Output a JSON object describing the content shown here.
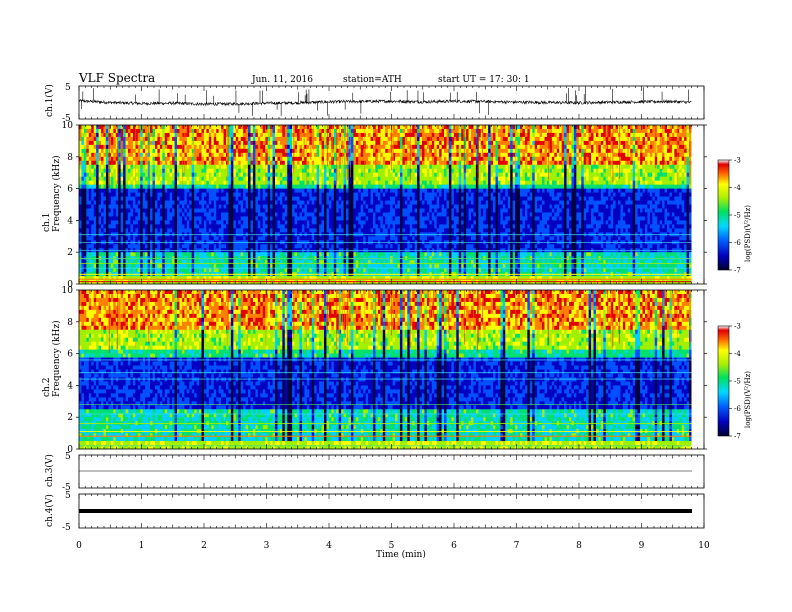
{
  "header": {
    "title": "VLF  Spectra",
    "date": "Jun. 11, 2016",
    "station": "station=ATH",
    "start": "start  UT  =    17: 30: 1"
  },
  "chart_data": [
    {
      "type": "line",
      "panel": "ch1-waveform",
      "ylabel": "ch.1(V)",
      "ylim": [
        -5,
        5
      ],
      "yticks": [
        "5",
        "-5"
      ],
      "xlim": [
        0,
        10
      ],
      "x": [
        0,
        0.5,
        1,
        1.5,
        2,
        2.5,
        3,
        3.5,
        4,
        4.5,
        5,
        5.5,
        6,
        6.5,
        7,
        7.5,
        8,
        8.5,
        9,
        9.5,
        9.8
      ],
      "values": [
        0.5,
        0,
        -0.3,
        -0.2,
        -0.5,
        -0.4,
        -0.2,
        -0.1,
        0.2,
        0.3,
        0.4,
        0.2,
        0.4,
        0.3,
        0.1,
        0,
        -0.1,
        0.1,
        0.2,
        0.3,
        0
      ]
    },
    {
      "type": "heatmap",
      "panel": "ch1-spectrogram",
      "ylabel": "ch.1\nFrequency  (kHz)",
      "ylim": [
        0,
        10
      ],
      "yticks": [
        "0",
        "2",
        "4",
        "6",
        "8",
        "10"
      ],
      "xlim": [
        0,
        9.8
      ],
      "colorbar": {
        "label": "log(PSD)(V²/Hz)",
        "range": [
          -7,
          -3
        ],
        "ticks": [
          "-3",
          "-4",
          "-5",
          "-6",
          "-7"
        ]
      }
    },
    {
      "type": "heatmap",
      "panel": "ch2-spectrogram",
      "ylabel": "ch.2\nFrequency  (kHz)",
      "ylim": [
        0,
        10
      ],
      "yticks": [
        "0",
        "2",
        "4",
        "6",
        "8",
        "10"
      ],
      "xlim": [
        0,
        9.8
      ],
      "colorbar": {
        "label": "log(PSD)(V²/Hz)",
        "range": [
          -7,
          -3
        ],
        "ticks": [
          "-3",
          "-4",
          "-5",
          "-6",
          "-7"
        ]
      }
    },
    {
      "type": "line",
      "panel": "ch3-waveform",
      "ylabel": "ch.3(V)",
      "ylim": [
        -5,
        5
      ],
      "yticks": [
        "5",
        "-5"
      ],
      "xlim": [
        0,
        10
      ],
      "x": [
        0,
        9.8
      ],
      "values": [
        0,
        0
      ]
    },
    {
      "type": "line",
      "panel": "ch4-waveform",
      "ylabel": "ch.4(V)",
      "ylim": [
        -5,
        5
      ],
      "yticks": [
        "5",
        "-5"
      ],
      "xlim": [
        0,
        10
      ],
      "x": [
        0,
        9.8
      ],
      "values": [
        0,
        0
      ]
    }
  ],
  "xaxis": {
    "label": "Time  (min)",
    "ticks": [
      "0",
      "1",
      "2",
      "3",
      "4",
      "5",
      "6",
      "7",
      "8",
      "9",
      "10"
    ]
  },
  "colors": {
    "waveform": "#000000",
    "colormap": [
      "#000040",
      "#0000c0",
      "#0050ff",
      "#00d0ff",
      "#00e070",
      "#a0f000",
      "#ffff00",
      "#ff8000",
      "#e00000",
      "#ffffff"
    ]
  }
}
